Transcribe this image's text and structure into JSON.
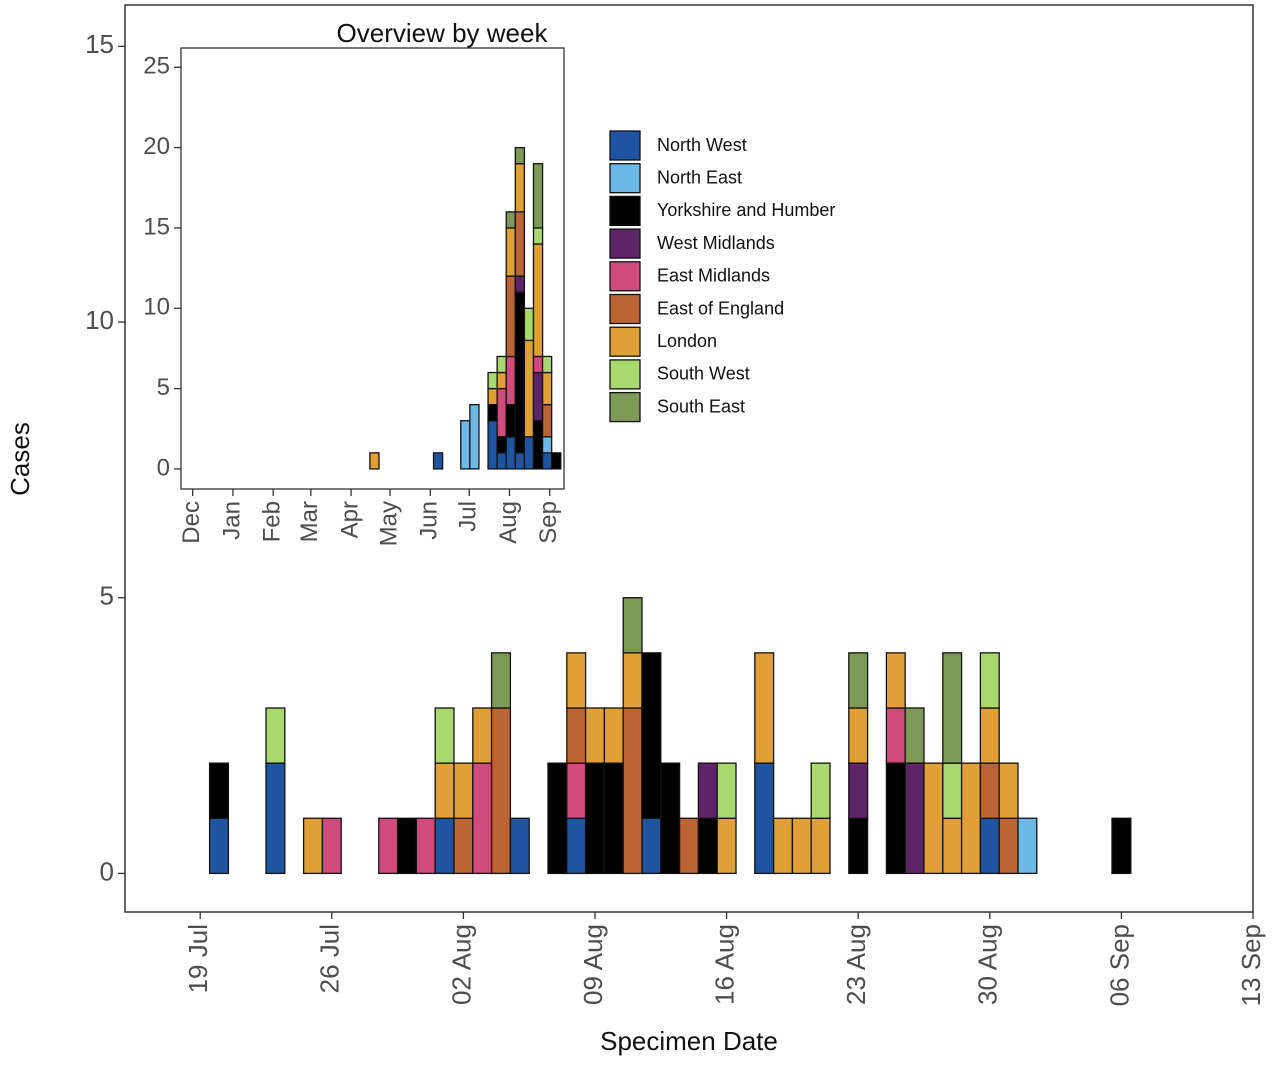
{
  "chart_data": [
    {
      "type": "bar",
      "stacked": true,
      "x_label": "Specimen Date",
      "y_label": "Cases",
      "x": [
        "07-20",
        "07-23",
        "07-25",
        "07-26",
        "07-29",
        "07-30",
        "07-31",
        "08-01",
        "08-02",
        "08-03",
        "08-04",
        "08-05",
        "08-07",
        "08-08",
        "08-09",
        "08-10",
        "08-11",
        "08-12",
        "08-13",
        "08-14",
        "08-15",
        "08-16",
        "08-18",
        "08-19",
        "08-20",
        "08-21",
        "08-23",
        "08-25",
        "08-26",
        "08-27",
        "08-28",
        "08-29",
        "08-30",
        "08-31",
        "09-01",
        "09-06"
      ],
      "xlim": [
        "07-15",
        "09-13"
      ],
      "xticks": [
        {
          "value": "07-19",
          "label": "19 Jul"
        },
        {
          "value": "07-26",
          "label": "26 Jul"
        },
        {
          "value": "08-02",
          "label": "02 Aug"
        },
        {
          "value": "08-09",
          "label": "09 Aug"
        },
        {
          "value": "08-16",
          "label": "16 Aug"
        },
        {
          "value": "08-23",
          "label": "23 Aug"
        },
        {
          "value": "08-30",
          "label": "30 Aug"
        },
        {
          "value": "09-06",
          "label": "06 Sep"
        },
        {
          "value": "09-13",
          "label": "13 Sep"
        }
      ],
      "ylim": [
        -0.7,
        15.75
      ],
      "yticks": [
        0,
        5,
        10,
        15
      ],
      "series": [
        {
          "name": "North West",
          "color": "#1f55a0",
          "values": [
            1,
            2,
            null,
            null,
            null,
            null,
            null,
            1,
            null,
            null,
            null,
            1,
            null,
            1,
            null,
            null,
            null,
            1,
            null,
            null,
            null,
            null,
            2,
            null,
            null,
            null,
            null,
            null,
            null,
            null,
            null,
            null,
            1,
            null,
            null,
            null
          ]
        },
        {
          "name": "North East",
          "color": "#6cb8e6",
          "values": [
            null,
            null,
            null,
            null,
            null,
            null,
            null,
            null,
            null,
            null,
            null,
            null,
            null,
            null,
            null,
            null,
            null,
            null,
            null,
            null,
            null,
            null,
            null,
            null,
            null,
            null,
            null,
            null,
            null,
            null,
            null,
            null,
            null,
            null,
            1,
            null
          ]
        },
        {
          "name": "Yorkshire and Humber",
          "color": "#000000",
          "values": [
            1,
            null,
            null,
            null,
            null,
            1,
            null,
            null,
            null,
            null,
            null,
            null,
            2,
            null,
            2,
            2,
            null,
            3,
            2,
            null,
            1,
            null,
            null,
            null,
            null,
            null,
            1,
            2,
            null,
            null,
            null,
            null,
            null,
            null,
            null,
            1
          ]
        },
        {
          "name": "West Midlands",
          "color": "#5e2468",
          "values": [
            null,
            null,
            null,
            null,
            null,
            null,
            null,
            null,
            null,
            null,
            null,
            null,
            null,
            null,
            null,
            null,
            null,
            null,
            null,
            null,
            1,
            null,
            null,
            null,
            null,
            null,
            1,
            null,
            2,
            null,
            null,
            null,
            null,
            null,
            null,
            null
          ]
        },
        {
          "name": "East Midlands",
          "color": "#d14a7c",
          "values": [
            null,
            null,
            null,
            1,
            1,
            null,
            1,
            null,
            null,
            2,
            null,
            null,
            null,
            1,
            null,
            null,
            null,
            null,
            null,
            null,
            null,
            null,
            null,
            null,
            null,
            null,
            null,
            1,
            null,
            null,
            null,
            null,
            null,
            null,
            null,
            null
          ]
        },
        {
          "name": "East of England",
          "color": "#bb6535",
          "values": [
            null,
            null,
            null,
            null,
            null,
            null,
            null,
            null,
            1,
            null,
            3,
            null,
            null,
            1,
            null,
            null,
            3,
            null,
            null,
            1,
            null,
            null,
            null,
            null,
            null,
            null,
            null,
            null,
            null,
            null,
            null,
            null,
            1,
            1,
            null,
            null
          ]
        },
        {
          "name": "London",
          "color": "#e0a035",
          "values": [
            null,
            null,
            1,
            null,
            null,
            null,
            null,
            1,
            1,
            1,
            null,
            null,
            null,
            1,
            1,
            1,
            1,
            null,
            null,
            null,
            null,
            1,
            2,
            1,
            1,
            1,
            1,
            1,
            null,
            2,
            1,
            2,
            1,
            1,
            null,
            null
          ]
        },
        {
          "name": "South West",
          "color": "#a9d86e",
          "values": [
            null,
            1,
            null,
            null,
            null,
            null,
            null,
            1,
            null,
            null,
            null,
            null,
            null,
            null,
            null,
            null,
            null,
            null,
            null,
            null,
            null,
            1,
            null,
            null,
            null,
            1,
            null,
            null,
            null,
            null,
            1,
            null,
            1,
            null,
            null,
            null
          ]
        },
        {
          "name": "South East",
          "color": "#7e9a57",
          "values": [
            null,
            null,
            null,
            null,
            null,
            null,
            null,
            null,
            null,
            null,
            1,
            null,
            null,
            null,
            null,
            null,
            1,
            null,
            null,
            null,
            null,
            null,
            null,
            null,
            null,
            null,
            1,
            null,
            1,
            null,
            2,
            null,
            null,
            null,
            null,
            null
          ]
        }
      ]
    },
    {
      "type": "bar",
      "stacked": true,
      "title": "Overview by week",
      "x": [
        "04-19",
        "06-07",
        "06-28",
        "07-05",
        "07-19",
        "07-26",
        "08-02",
        "08-09",
        "08-16",
        "08-23",
        "08-30",
        "09-06"
      ],
      "xlim": [
        "11-22",
        "09-12"
      ],
      "xticks": [
        {
          "value": "12-01",
          "label": "Dec"
        },
        {
          "value": "01-01",
          "label": "Jan"
        },
        {
          "value": "02-01",
          "label": "Feb"
        },
        {
          "value": "03-01",
          "label": "Mar"
        },
        {
          "value": "04-01",
          "label": "Apr"
        },
        {
          "value": "05-01",
          "label": "May"
        },
        {
          "value": "06-01",
          "label": "Jun"
        },
        {
          "value": "07-01",
          "label": "Jul"
        },
        {
          "value": "08-01",
          "label": "Aug"
        },
        {
          "value": "09-01",
          "label": "Sep"
        }
      ],
      "ylim": [
        -1.25,
        26.2
      ],
      "yticks": [
        0,
        5,
        10,
        15,
        20,
        25
      ],
      "zoom_box": {
        "xlim": [
          "07-15",
          "09-13"
        ],
        "ylim": [
          0,
          25
        ]
      },
      "series": [
        {
          "values": [
            null,
            1,
            null,
            null,
            3,
            1,
            2,
            1,
            2,
            null,
            1,
            null
          ]
        },
        {
          "values": [
            null,
            null,
            3,
            4,
            null,
            null,
            null,
            null,
            null,
            null,
            1,
            null
          ]
        },
        {
          "values": [
            null,
            null,
            null,
            null,
            1,
            1,
            2,
            10,
            null,
            3,
            null,
            1
          ]
        },
        {
          "values": [
            null,
            null,
            null,
            null,
            null,
            null,
            null,
            1,
            null,
            3,
            null,
            null
          ]
        },
        {
          "values": [
            null,
            null,
            null,
            null,
            null,
            3,
            3,
            null,
            null,
            1,
            null,
            null
          ]
        },
        {
          "values": [
            null,
            null,
            null,
            null,
            null,
            null,
            5,
            4,
            null,
            null,
            2,
            null
          ]
        },
        {
          "values": [
            1,
            null,
            null,
            null,
            1,
            1,
            3,
            3,
            6,
            7,
            2,
            null
          ]
        },
        {
          "values": [
            null,
            null,
            null,
            null,
            1,
            1,
            null,
            null,
            2,
            1,
            1,
            null
          ]
        },
        {
          "values": [
            null,
            null,
            null,
            null,
            null,
            null,
            1,
            1,
            null,
            4,
            null,
            null
          ]
        }
      ]
    }
  ]
}
